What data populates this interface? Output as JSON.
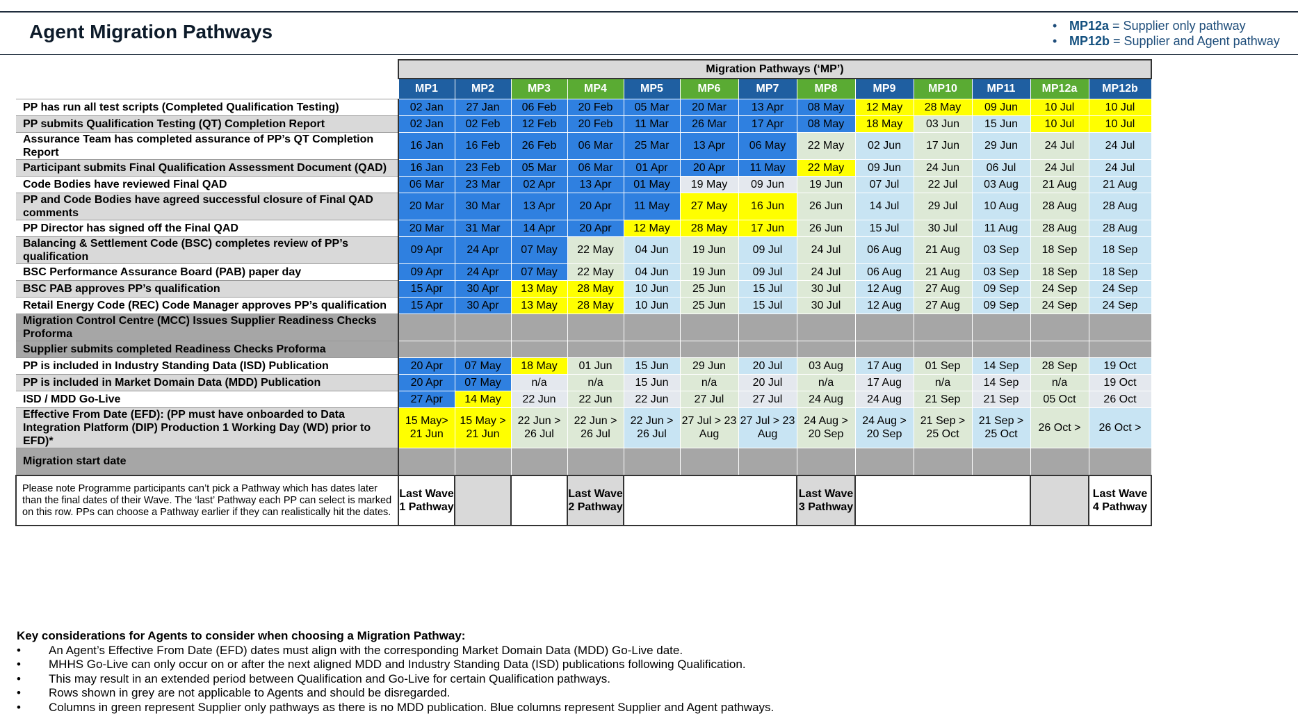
{
  "title": "Agent Migration Pathways",
  "legend": [
    {
      "code": "MP12a",
      "text": " = Supplier only pathway"
    },
    {
      "code": "MP12b",
      "text": " = Supplier and Agent pathway"
    }
  ],
  "group_header": "Migration Pathways (‘MP’)",
  "pathways": [
    {
      "label": "MP1",
      "kind": "blue"
    },
    {
      "label": "MP2",
      "kind": "blue"
    },
    {
      "label": "MP3",
      "kind": "green"
    },
    {
      "label": "MP4",
      "kind": "green"
    },
    {
      "label": "MP5",
      "kind": "blue"
    },
    {
      "label": "MP6",
      "kind": "green"
    },
    {
      "label": "MP7",
      "kind": "blue"
    },
    {
      "label": "MP8",
      "kind": "green"
    },
    {
      "label": "MP9",
      "kind": "blue"
    },
    {
      "label": "MP10",
      "kind": "green"
    },
    {
      "label": "MP11",
      "kind": "blue"
    },
    {
      "label": "MP12a",
      "kind": "green"
    },
    {
      "label": "MP12b",
      "kind": "blue"
    }
  ],
  "colors": {
    "blue_cell": "#2f80e0",
    "yellow_cell": "#ffff00",
    "light_blue_cell": "#c8e4f3",
    "light_green_cell": "#dde9d6",
    "grey_row": "#a6a6a6",
    "header_blue": "#1f5fa1",
    "header_green": "#5aab33"
  },
  "cell_styles": {
    "B": "blue (strong)",
    "Y": "yellow (highlight)",
    "L": "light blue",
    "S": "light green",
    "N": "light grey",
    "G": "grey (not applicable)"
  },
  "rows": [
    {
      "label": "PP has run all test scripts (Completed Qualification Testing)",
      "shade": "o",
      "tall": false,
      "cells": [
        [
          "02 Jan",
          "B"
        ],
        [
          "27 Jan",
          "B"
        ],
        [
          "06 Feb",
          "B"
        ],
        [
          "20 Feb",
          "B"
        ],
        [
          "05 Mar",
          "B"
        ],
        [
          "20 Mar",
          "B"
        ],
        [
          "13 Apr",
          "B"
        ],
        [
          "08 May",
          "B"
        ],
        [
          "12 May",
          "Y"
        ],
        [
          "28 May",
          "Y"
        ],
        [
          "09 Jun",
          "Y"
        ],
        [
          "10 Jul",
          "Y"
        ],
        [
          "10 Jul",
          "Y"
        ]
      ]
    },
    {
      "label": "PP submits Qualification Testing (QT) Completion Report",
      "shade": "e",
      "tall": false,
      "cells": [
        [
          "02 Jan",
          "B"
        ],
        [
          "02 Feb",
          "B"
        ],
        [
          "12 Feb",
          "B"
        ],
        [
          "20 Feb",
          "B"
        ],
        [
          "11 Mar",
          "B"
        ],
        [
          "26 Mar",
          "B"
        ],
        [
          "17 Apr",
          "B"
        ],
        [
          "08 May",
          "B"
        ],
        [
          "18 May",
          "Y"
        ],
        [
          "03 Jun",
          "S"
        ],
        [
          "15 Jun",
          "L"
        ],
        [
          "10 Jul",
          "Y"
        ],
        [
          "10 Jul",
          "Y"
        ]
      ]
    },
    {
      "label": "Assurance Team has completed assurance of PP’s QT Completion Report",
      "shade": "o",
      "tall": true,
      "cells": [
        [
          "16 Jan",
          "B"
        ],
        [
          "16 Feb",
          "B"
        ],
        [
          "26 Feb",
          "B"
        ],
        [
          "06 Mar",
          "B"
        ],
        [
          "25 Mar",
          "B"
        ],
        [
          "13 Apr",
          "B"
        ],
        [
          "06 May",
          "B"
        ],
        [
          "22 May",
          "S"
        ],
        [
          "02 Jun",
          "L"
        ],
        [
          "17 Jun",
          "S"
        ],
        [
          "29 Jun",
          "L"
        ],
        [
          "24 Jul",
          "S"
        ],
        [
          "24 Jul",
          "L"
        ]
      ]
    },
    {
      "label": "Participant submits Final Qualification Assessment Document (QAD)",
      "shade": "e",
      "tall": false,
      "cells": [
        [
          "16 Jan",
          "B"
        ],
        [
          "23 Feb",
          "B"
        ],
        [
          "05 Mar",
          "B"
        ],
        [
          "06 Mar",
          "B"
        ],
        [
          "01 Apr",
          "B"
        ],
        [
          "20 Apr",
          "B"
        ],
        [
          "11 May",
          "B"
        ],
        [
          "22 May",
          "Y"
        ],
        [
          "09 Jun",
          "L"
        ],
        [
          "24 Jun",
          "S"
        ],
        [
          "06 Jul",
          "L"
        ],
        [
          "24 Jul",
          "S"
        ],
        [
          "24 Jul",
          "L"
        ]
      ]
    },
    {
      "label": "Code Bodies have reviewed Final QAD",
      "shade": "o",
      "tall": false,
      "cells": [
        [
          "06 Mar",
          "B"
        ],
        [
          "23 Mar",
          "B"
        ],
        [
          "02 Apr",
          "B"
        ],
        [
          "13 Apr",
          "B"
        ],
        [
          "01 May",
          "B"
        ],
        [
          "19 May",
          "N"
        ],
        [
          "09 Jun",
          "N"
        ],
        [
          "19 Jun",
          "S"
        ],
        [
          "07 Jul",
          "L"
        ],
        [
          "22 Jul",
          "S"
        ],
        [
          "03 Aug",
          "L"
        ],
        [
          "21 Aug",
          "S"
        ],
        [
          "21 Aug",
          "L"
        ]
      ]
    },
    {
      "label": "PP and Code Bodies have agreed successful closure of Final QAD comments",
      "shade": "e",
      "tall": true,
      "cells": [
        [
          "20 Mar",
          "B"
        ],
        [
          "30 Mar",
          "B"
        ],
        [
          "13 Apr",
          "B"
        ],
        [
          "20 Apr",
          "B"
        ],
        [
          "11 May",
          "B"
        ],
        [
          "27 May",
          "Y"
        ],
        [
          "16 Jun",
          "Y"
        ],
        [
          "26 Jun",
          "S"
        ],
        [
          "14 Jul",
          "L"
        ],
        [
          "29 Jul",
          "S"
        ],
        [
          "10 Aug",
          "L"
        ],
        [
          "28 Aug",
          "S"
        ],
        [
          "28 Aug",
          "L"
        ]
      ]
    },
    {
      "label": "PP Director has signed off the Final QAD",
      "shade": "o",
      "tall": false,
      "cells": [
        [
          "20 Mar",
          "B"
        ],
        [
          "31 Mar",
          "B"
        ],
        [
          "14 Apr",
          "B"
        ],
        [
          "20 Apr",
          "B"
        ],
        [
          "12 May",
          "Y"
        ],
        [
          "28 May",
          "Y"
        ],
        [
          "17 Jun",
          "Y"
        ],
        [
          "26 Jun",
          "S"
        ],
        [
          "15 Jul",
          "L"
        ],
        [
          "30 Jul",
          "S"
        ],
        [
          "11 Aug",
          "L"
        ],
        [
          "28 Aug",
          "S"
        ],
        [
          "28 Aug",
          "L"
        ]
      ]
    },
    {
      "label": "Balancing & Settlement Code (BSC) completes review of PP’s qualification",
      "shade": "e",
      "tall": true,
      "cells": [
        [
          "09 Apr",
          "B"
        ],
        [
          "24 Apr",
          "B"
        ],
        [
          "07 May",
          "B"
        ],
        [
          "22 May",
          "S"
        ],
        [
          "04 Jun",
          "L"
        ],
        [
          "19 Jun",
          "S"
        ],
        [
          "09 Jul",
          "L"
        ],
        [
          "24 Jul",
          "S"
        ],
        [
          "06 Aug",
          "L"
        ],
        [
          "21 Aug",
          "S"
        ],
        [
          "03 Sep",
          "L"
        ],
        [
          "18 Sep",
          "S"
        ],
        [
          "18 Sep",
          "L"
        ]
      ]
    },
    {
      "label": "BSC Performance Assurance Board (PAB) paper day",
      "shade": "o",
      "tall": false,
      "cells": [
        [
          "09 Apr",
          "B"
        ],
        [
          "24 Apr",
          "B"
        ],
        [
          "07 May",
          "B"
        ],
        [
          "22 May",
          "S"
        ],
        [
          "04 Jun",
          "L"
        ],
        [
          "19 Jun",
          "S"
        ],
        [
          "09 Jul",
          "L"
        ],
        [
          "24 Jul",
          "S"
        ],
        [
          "06 Aug",
          "L"
        ],
        [
          "21 Aug",
          "S"
        ],
        [
          "03 Sep",
          "L"
        ],
        [
          "18 Sep",
          "S"
        ],
        [
          "18 Sep",
          "L"
        ]
      ]
    },
    {
      "label": "BSC PAB approves PP’s qualification",
      "shade": "e",
      "tall": false,
      "cells": [
        [
          "15 Apr",
          "B"
        ],
        [
          "30 Apr",
          "B"
        ],
        [
          "13 May",
          "Y"
        ],
        [
          "28 May",
          "Y"
        ],
        [
          "10 Jun",
          "L"
        ],
        [
          "25 Jun",
          "S"
        ],
        [
          "15 Jul",
          "L"
        ],
        [
          "30 Jul",
          "S"
        ],
        [
          "12 Aug",
          "L"
        ],
        [
          "27 Aug",
          "S"
        ],
        [
          "09 Sep",
          "L"
        ],
        [
          "24 Sep",
          "S"
        ],
        [
          "24 Sep",
          "L"
        ]
      ]
    },
    {
      "label": "Retail Energy Code (REC) Code Manager approves PP’s qualification",
      "shade": "o",
      "tall": false,
      "cells": [
        [
          "15 Apr",
          "B"
        ],
        [
          "30 Apr",
          "B"
        ],
        [
          "13 May",
          "Y"
        ],
        [
          "28 May",
          "Y"
        ],
        [
          "10 Jun",
          "L"
        ],
        [
          "25 Jun",
          "S"
        ],
        [
          "15 Jul",
          "L"
        ],
        [
          "30 Jul",
          "S"
        ],
        [
          "12 Aug",
          "L"
        ],
        [
          "27 Aug",
          "S"
        ],
        [
          "09 Sep",
          "L"
        ],
        [
          "24 Sep",
          "S"
        ],
        [
          "24 Sep",
          "L"
        ]
      ]
    },
    {
      "label": "Migration Control Centre (MCC) Issues Supplier Readiness Checks Proforma",
      "shade": "g",
      "tall": true,
      "cells": [
        [
          "",
          "G"
        ],
        [
          "",
          "G"
        ],
        [
          "",
          "G"
        ],
        [
          "",
          "G"
        ],
        [
          "",
          "G"
        ],
        [
          "",
          "G"
        ],
        [
          "",
          "G"
        ],
        [
          "",
          "G"
        ],
        [
          "",
          "G"
        ],
        [
          "",
          "G"
        ],
        [
          "",
          "G"
        ],
        [
          "",
          "G"
        ],
        [
          "",
          "G"
        ]
      ]
    },
    {
      "label": "Supplier submits completed Readiness Checks Proforma",
      "shade": "g",
      "tall": false,
      "cells": [
        [
          "",
          "G"
        ],
        [
          "",
          "G"
        ],
        [
          "",
          "G"
        ],
        [
          "",
          "G"
        ],
        [
          "",
          "G"
        ],
        [
          "",
          "G"
        ],
        [
          "",
          "G"
        ],
        [
          "",
          "G"
        ],
        [
          "",
          "G"
        ],
        [
          "",
          "G"
        ],
        [
          "",
          "G"
        ],
        [
          "",
          "G"
        ],
        [
          "",
          "G"
        ]
      ]
    },
    {
      "label": "PP is included in Industry Standing Data (ISD) Publication",
      "shade": "o",
      "tall": false,
      "cells": [
        [
          "20 Apr",
          "B"
        ],
        [
          "07 May",
          "B"
        ],
        [
          "18 May",
          "Y"
        ],
        [
          "01 Jun",
          "S"
        ],
        [
          "15 Jun",
          "L"
        ],
        [
          "29 Jun",
          "S"
        ],
        [
          "20 Jul",
          "L"
        ],
        [
          "03 Aug",
          "S"
        ],
        [
          "17 Aug",
          "L"
        ],
        [
          "01 Sep",
          "S"
        ],
        [
          "14 Sep",
          "L"
        ],
        [
          "28 Sep",
          "S"
        ],
        [
          "19 Oct",
          "L"
        ]
      ]
    },
    {
      "label": "PP is included in Market Domain Data (MDD) Publication",
      "shade": "e",
      "tall": false,
      "cells": [
        [
          "20 Apr",
          "B"
        ],
        [
          "07 May",
          "B"
        ],
        [
          "n/a",
          "N"
        ],
        [
          "n/a",
          "S"
        ],
        [
          "15 Jun",
          "N"
        ],
        [
          "n/a",
          "S"
        ],
        [
          "20 Jul",
          "N"
        ],
        [
          "n/a",
          "S"
        ],
        [
          "17 Aug",
          "N"
        ],
        [
          "n/a",
          "S"
        ],
        [
          "14 Sep",
          "N"
        ],
        [
          "n/a",
          "S"
        ],
        [
          "19 Oct",
          "N"
        ]
      ]
    },
    {
      "label": "ISD / MDD Go-Live",
      "shade": "o",
      "tall": false,
      "cells": [
        [
          "27 Apr",
          "B"
        ],
        [
          "14 May",
          "Y"
        ],
        [
          "22 Jun",
          "N"
        ],
        [
          "22 Jun",
          "S"
        ],
        [
          "22 Jun",
          "N"
        ],
        [
          "27 Jul",
          "S"
        ],
        [
          "27 Jul",
          "N"
        ],
        [
          "24 Aug",
          "S"
        ],
        [
          "24 Aug",
          "N"
        ],
        [
          "21 Sep",
          "S"
        ],
        [
          "21 Sep",
          "N"
        ],
        [
          "05 Oct",
          "S"
        ],
        [
          "26 Oct",
          "N"
        ]
      ]
    },
    {
      "label": "Effective From Date (EFD): (PP must have onboarded to Data Integration Platform (DIP) Production 1 Working Day (WD) prior to EFD)*",
      "shade": "e",
      "tall": "xl",
      "cells": [
        [
          "15 May> 21 Jun",
          "Y"
        ],
        [
          "15 May > 21 Jun",
          "Y"
        ],
        [
          "22 Jun > 26 Jul",
          "S"
        ],
        [
          "22 Jun > 26 Jul",
          "S"
        ],
        [
          "22 Jun > 26 Jul",
          "L"
        ],
        [
          "27 Jul > 23 Aug",
          "S"
        ],
        [
          "27 Jul > 23 Aug",
          "L"
        ],
        [
          "24 Aug > 20 Sep",
          "S"
        ],
        [
          "24 Aug > 20 Sep",
          "L"
        ],
        [
          "21 Sep > 25 Oct",
          "S"
        ],
        [
          "21 Sep > 25 Oct",
          "L"
        ],
        [
          "26 Oct >",
          "S"
        ],
        [
          "26 Oct >",
          "L"
        ]
      ]
    },
    {
      "label": "Migration start date",
      "shade": "g",
      "tall": "ms",
      "cells": [
        [
          "",
          "G"
        ],
        [
          "",
          "G"
        ],
        [
          "",
          "G"
        ],
        [
          "",
          "G"
        ],
        [
          "",
          "G"
        ],
        [
          "",
          "G"
        ],
        [
          "",
          "G"
        ],
        [
          "",
          "G"
        ],
        [
          "",
          "G"
        ],
        [
          "",
          "G"
        ],
        [
          "",
          "G"
        ],
        [
          "",
          "G"
        ],
        [
          "",
          "G"
        ]
      ]
    }
  ],
  "note": "Please note Programme participants can’t pick a Pathway which has dates later than the final dates of their Wave. The ‘last’ Pathway each PP can select is marked on this row. PPs can choose a Pathway earlier if they can realistically hit the dates.",
  "last_wave_row": [
    {
      "text": "Last Wave 1 Pathway",
      "span": 1,
      "shade": "white"
    },
    {
      "text": "",
      "span": 1,
      "shade": "grey"
    },
    {
      "text": "",
      "span": 1,
      "shade": "white"
    },
    {
      "text": "Last Wave 2 Pathway",
      "span": 1,
      "shade": "grey"
    },
    {
      "text": "",
      "span": 3,
      "shade": "white"
    },
    {
      "text": "Last Wave 3 Pathway",
      "span": 1,
      "shade": "grey"
    },
    {
      "text": "",
      "span": 3,
      "shade": "white"
    },
    {
      "text": "",
      "span": 1,
      "shade": "grey"
    },
    {
      "text": "Last Wave 4 Pathway",
      "span": 1,
      "shade": "white"
    }
  ],
  "key": {
    "title": "Key considerations for Agents to consider when choosing a Migration Pathway:",
    "items": [
      "An Agent’s Effective From Date (EFD) dates must align with the corresponding Market Domain Data (MDD) Go-Live date.",
      "MHHS Go-Live can only occur on or after the next aligned MDD and Industry Standing Data (ISD) publications following Qualification.",
      "This may result in an extended period between Qualification and Go-Live for certain Qualification pathways.",
      "Rows shown in grey are not applicable to Agents and should be disregarded.",
      "Columns in green represent Supplier only pathways as there is no MDD publication. Blue columns represent Supplier and Agent pathways."
    ]
  }
}
